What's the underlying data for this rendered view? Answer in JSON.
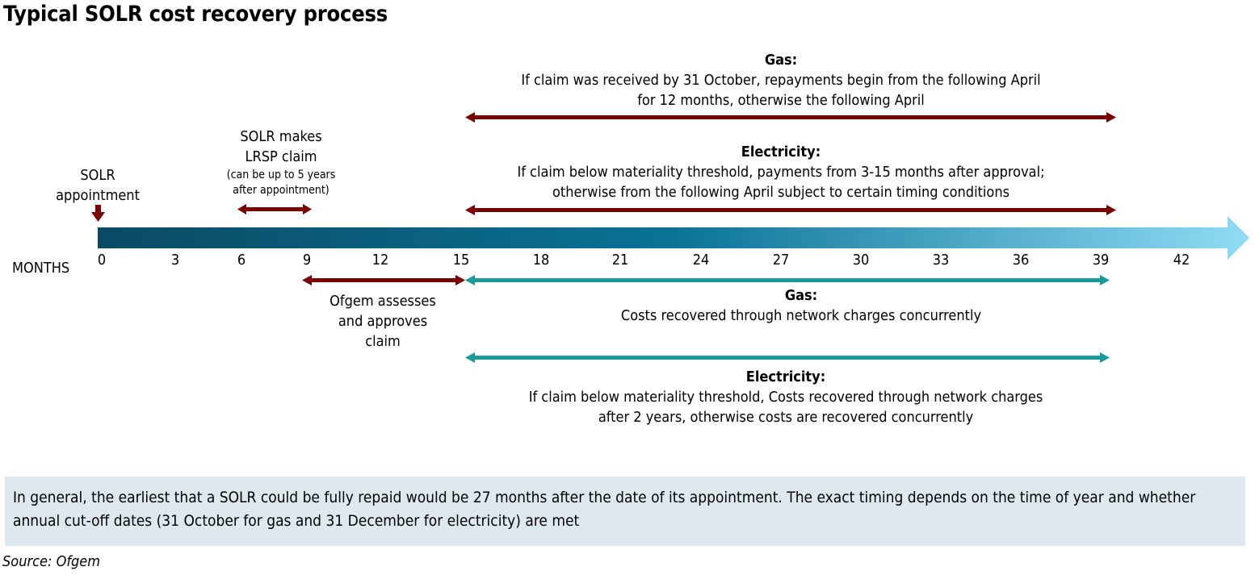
{
  "title": "Typical SOLR cost recovery process",
  "axis": {
    "label": "MONTHS",
    "ticks": [
      "0",
      "3",
      "6",
      "9",
      "12",
      "15",
      "18",
      "21",
      "24",
      "27",
      "30",
      "33",
      "36",
      "39",
      "42"
    ]
  },
  "labels": {
    "appointment": [
      "SOLR",
      "appointment"
    ],
    "claim": [
      "SOLR makes",
      "LRSP claim"
    ],
    "claim_note": [
      "(can be up to 5 years",
      "after appointment)"
    ],
    "ofgem": [
      "Ofgem assesses",
      "and approves",
      "claim"
    ]
  },
  "repayments": {
    "gas": {
      "heading": "Gas:",
      "lines": [
        "If claim was received by 31 October, repayments begin from the following April",
        "for 12 months, otherwise the following April"
      ]
    },
    "electricity": {
      "heading": "Electricity:",
      "lines": [
        "If claim below materiality threshold, payments from 3-15 months after approval;",
        "otherwise from the following April subject to certain timing conditions"
      ]
    }
  },
  "recovery": {
    "gas": {
      "heading": "Gas:",
      "lines": [
        "Costs recovered through network charges concurrently"
      ]
    },
    "electricity": {
      "heading": "Electricity:",
      "lines": [
        "If claim below materiality threshold, Costs recovered through network charges",
        "after 2 years, otherwise  costs are recovered concurrently"
      ]
    }
  },
  "note": "In general, the earliest that a SOLR could be fully repaid would be 27 months after the date of its appointment. The exact timing depends on the time of year and whether annual cut-off dates (31 October for gas and 31 December for electricity) are met",
  "source": "Source: Ofgem",
  "colors": {
    "dark_red": "#7b0000",
    "teal": "#1a9a9a",
    "timeline_start": "#0b4a63",
    "timeline_mid": "#0a7396",
    "timeline_end": "#8fdcf5",
    "note_bg": "#dde9ed"
  }
}
